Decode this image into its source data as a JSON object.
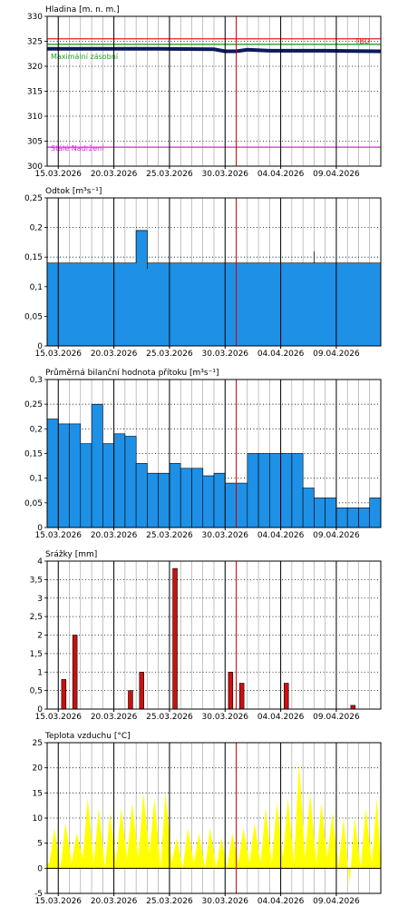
{
  "chart_data": [
    {
      "type": "line",
      "title": "Hladina [m. n. m.]",
      "x_tick_labels": [
        "15.03.2026",
        "20.03.2026",
        "25.03.2026",
        "30.03.2026",
        "04.04.2026",
        "09.04.2026"
      ],
      "x_start": "2026-03-14",
      "x_end": "2026-04-13",
      "current_marker": "2026-03-31",
      "ylim": [
        300,
        330
      ],
      "y_ticks": [
        300,
        305,
        310,
        315,
        320,
        325,
        330
      ],
      "grid": true,
      "reference_lines": [
        {
          "label": "TBD",
          "value": 325.5,
          "color": "#e02020"
        },
        {
          "label": "Maximální zásobní",
          "value": 324.4,
          "color": "#20a020"
        },
        {
          "label": "Stálé Nadržení",
          "value": 303.8,
          "color": "#e020e0"
        }
      ],
      "series": [
        {
          "color": "#0a1a5c",
          "x": [
            "2026-03-14",
            "2026-03-19",
            "2026-03-24",
            "2026-03-29",
            "2026-03-30",
            "2026-03-31",
            "2026-04-01",
            "2026-04-03",
            "2026-04-08",
            "2026-04-13"
          ],
          "values": [
            323.5,
            323.5,
            323.5,
            323.4,
            323.0,
            323.0,
            323.3,
            323.1,
            323.1,
            323.0
          ]
        }
      ]
    },
    {
      "type": "area",
      "title": "Odtok [m³s⁻¹]",
      "x_tick_labels": [
        "15.03.2026",
        "20.03.2026",
        "25.03.2026",
        "30.03.2026",
        "04.04.2026",
        "09.04.2026"
      ],
      "x_start": "2026-03-14",
      "x_end": "2026-04-13",
      "current_marker": "2026-03-31",
      "ylim": [
        0,
        0.25
      ],
      "y_ticks": [
        "0",
        "0,05",
        "0,1",
        "0,15",
        "0,2",
        "0,25"
      ],
      "grid": true,
      "color": "#1e90e6",
      "series": [
        {
          "x": [
            "2026-03-14",
            "2026-03-22",
            "2026-03-22",
            "2026-03-23",
            "2026-03-23",
            "2026-03-23",
            "2026-04-07",
            "2026-04-07",
            "2026-04-07",
            "2026-04-13"
          ],
          "values": [
            0.14,
            0.14,
            0.195,
            0.195,
            0.13,
            0.14,
            0.14,
            0.16,
            0.14,
            0.14
          ]
        }
      ]
    },
    {
      "type": "bar",
      "title": "Průměrná bilanční hodnota přítoku [m³s⁻¹]",
      "x_tick_labels": [
        "15.03.2026",
        "20.03.2026",
        "25.03.2026",
        "30.03.2026",
        "04.04.2026",
        "09.04.2026"
      ],
      "x_start": "2026-03-14",
      "x_end": "2026-04-13",
      "current_marker": "2026-03-31",
      "ylim": [
        0,
        0.3
      ],
      "y_ticks": [
        "0",
        "0,05",
        "0,1",
        "0,15",
        "0,2",
        "0,25",
        "0,3"
      ],
      "grid": true,
      "color": "#1e90e6",
      "categories": [
        "2026-03-14",
        "2026-03-15",
        "2026-03-16",
        "2026-03-17",
        "2026-03-18",
        "2026-03-19",
        "2026-03-20",
        "2026-03-21",
        "2026-03-22",
        "2026-03-23",
        "2026-03-24",
        "2026-03-25",
        "2026-03-26",
        "2026-03-27",
        "2026-03-28",
        "2026-03-29",
        "2026-03-30",
        "2026-03-31",
        "2026-04-01",
        "2026-04-02",
        "2026-04-03",
        "2026-04-04",
        "2026-04-05",
        "2026-04-06",
        "2026-04-07",
        "2026-04-08",
        "2026-04-09",
        "2026-04-10",
        "2026-04-11",
        "2026-04-12"
      ],
      "values": [
        0.22,
        0.21,
        0.21,
        0.17,
        0.25,
        0.17,
        0.19,
        0.185,
        0.13,
        0.11,
        0.11,
        0.13,
        0.12,
        0.12,
        0.105,
        0.11,
        0.09,
        0.09,
        0.15,
        0.15,
        0.15,
        0.15,
        0.15,
        0.08,
        0.06,
        0.06,
        0.04,
        0.04,
        0.04,
        0.06
      ]
    },
    {
      "type": "bar",
      "title": "Srážky [mm]",
      "x_tick_labels": [
        "15.03.2026",
        "20.03.2026",
        "25.03.2026",
        "30.03.2026",
        "04.04.2026",
        "09.04.2026"
      ],
      "x_start": "2026-03-14",
      "x_end": "2026-04-13",
      "current_marker": "2026-03-31",
      "ylim": [
        0,
        4
      ],
      "y_ticks": [
        "0",
        "0,5",
        "1",
        "1,5",
        "2",
        "2,5",
        "3",
        "3,5",
        "4"
      ],
      "grid": true,
      "color": "#cc1010",
      "categories": [
        "2026-03-14",
        "2026-03-15",
        "2026-03-16",
        "2026-03-17",
        "2026-03-18",
        "2026-03-19",
        "2026-03-20",
        "2026-03-21",
        "2026-03-22",
        "2026-03-23",
        "2026-03-24",
        "2026-03-25",
        "2026-03-26",
        "2026-03-27",
        "2026-03-28",
        "2026-03-29",
        "2026-03-30",
        "2026-03-31",
        "2026-04-01",
        "2026-04-02",
        "2026-04-03",
        "2026-04-04",
        "2026-04-05",
        "2026-04-06",
        "2026-04-07",
        "2026-04-08",
        "2026-04-09",
        "2026-04-10",
        "2026-04-11",
        "2026-04-12"
      ],
      "values": [
        0,
        0.8,
        2.0,
        0,
        0,
        0,
        0,
        0.5,
        1.0,
        0,
        0,
        3.8,
        0,
        0,
        0,
        0,
        1.0,
        0.7,
        0,
        0,
        0,
        0.7,
        0,
        0,
        0,
        0,
        0,
        0.1,
        0,
        0
      ]
    },
    {
      "type": "area",
      "title": "Teplota vzduchu [°C]",
      "x_tick_labels": [
        "15.03.2026",
        "20.03.2026",
        "25.03.2026",
        "30.03.2026",
        "04.04.2026",
        "09.04.2026"
      ],
      "x_start": "2026-03-14",
      "x_end": "2026-04-13",
      "current_marker": "2026-03-31",
      "ylim": [
        -5,
        25
      ],
      "y_ticks": [
        "-5",
        "0",
        "5",
        "10",
        "15",
        "20",
        "25"
      ],
      "grid": true,
      "color": "#ffff00",
      "daily_min": [
        1,
        0,
        1,
        2,
        1,
        0,
        1,
        2,
        2,
        3,
        0,
        1,
        0,
        1,
        0,
        0,
        0,
        1,
        1,
        1,
        1,
        2,
        1,
        2,
        1,
        2,
        0,
        -3,
        0,
        1
      ],
      "daily_max": [
        8,
        9,
        7,
        14,
        12,
        11,
        12,
        13,
        15,
        14,
        15,
        6,
        8,
        7,
        8,
        6,
        7,
        8,
        9,
        12,
        13,
        14,
        21,
        15,
        13,
        11,
        10,
        10,
        12,
        14
      ]
    }
  ]
}
